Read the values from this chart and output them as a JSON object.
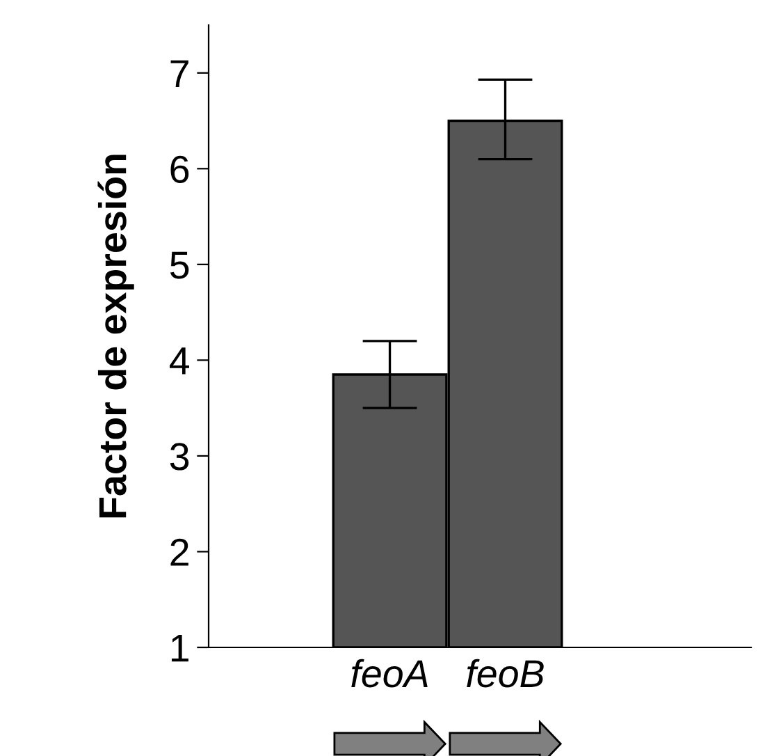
{
  "chart_data": {
    "type": "bar",
    "ylabel": "Factor de expresión",
    "categories": [
      "feoA",
      "feoB"
    ],
    "values": [
      3.85,
      6.5
    ],
    "errors": [
      [
        3.5,
        4.2
      ],
      [
        6.1,
        6.93
      ]
    ],
    "color": "#555555",
    "ylim": [
      1,
      7.5
    ],
    "yticks": [
      1,
      2,
      3,
      4,
      5,
      6,
      7
    ],
    "grid": false,
    "legend": false
  }
}
